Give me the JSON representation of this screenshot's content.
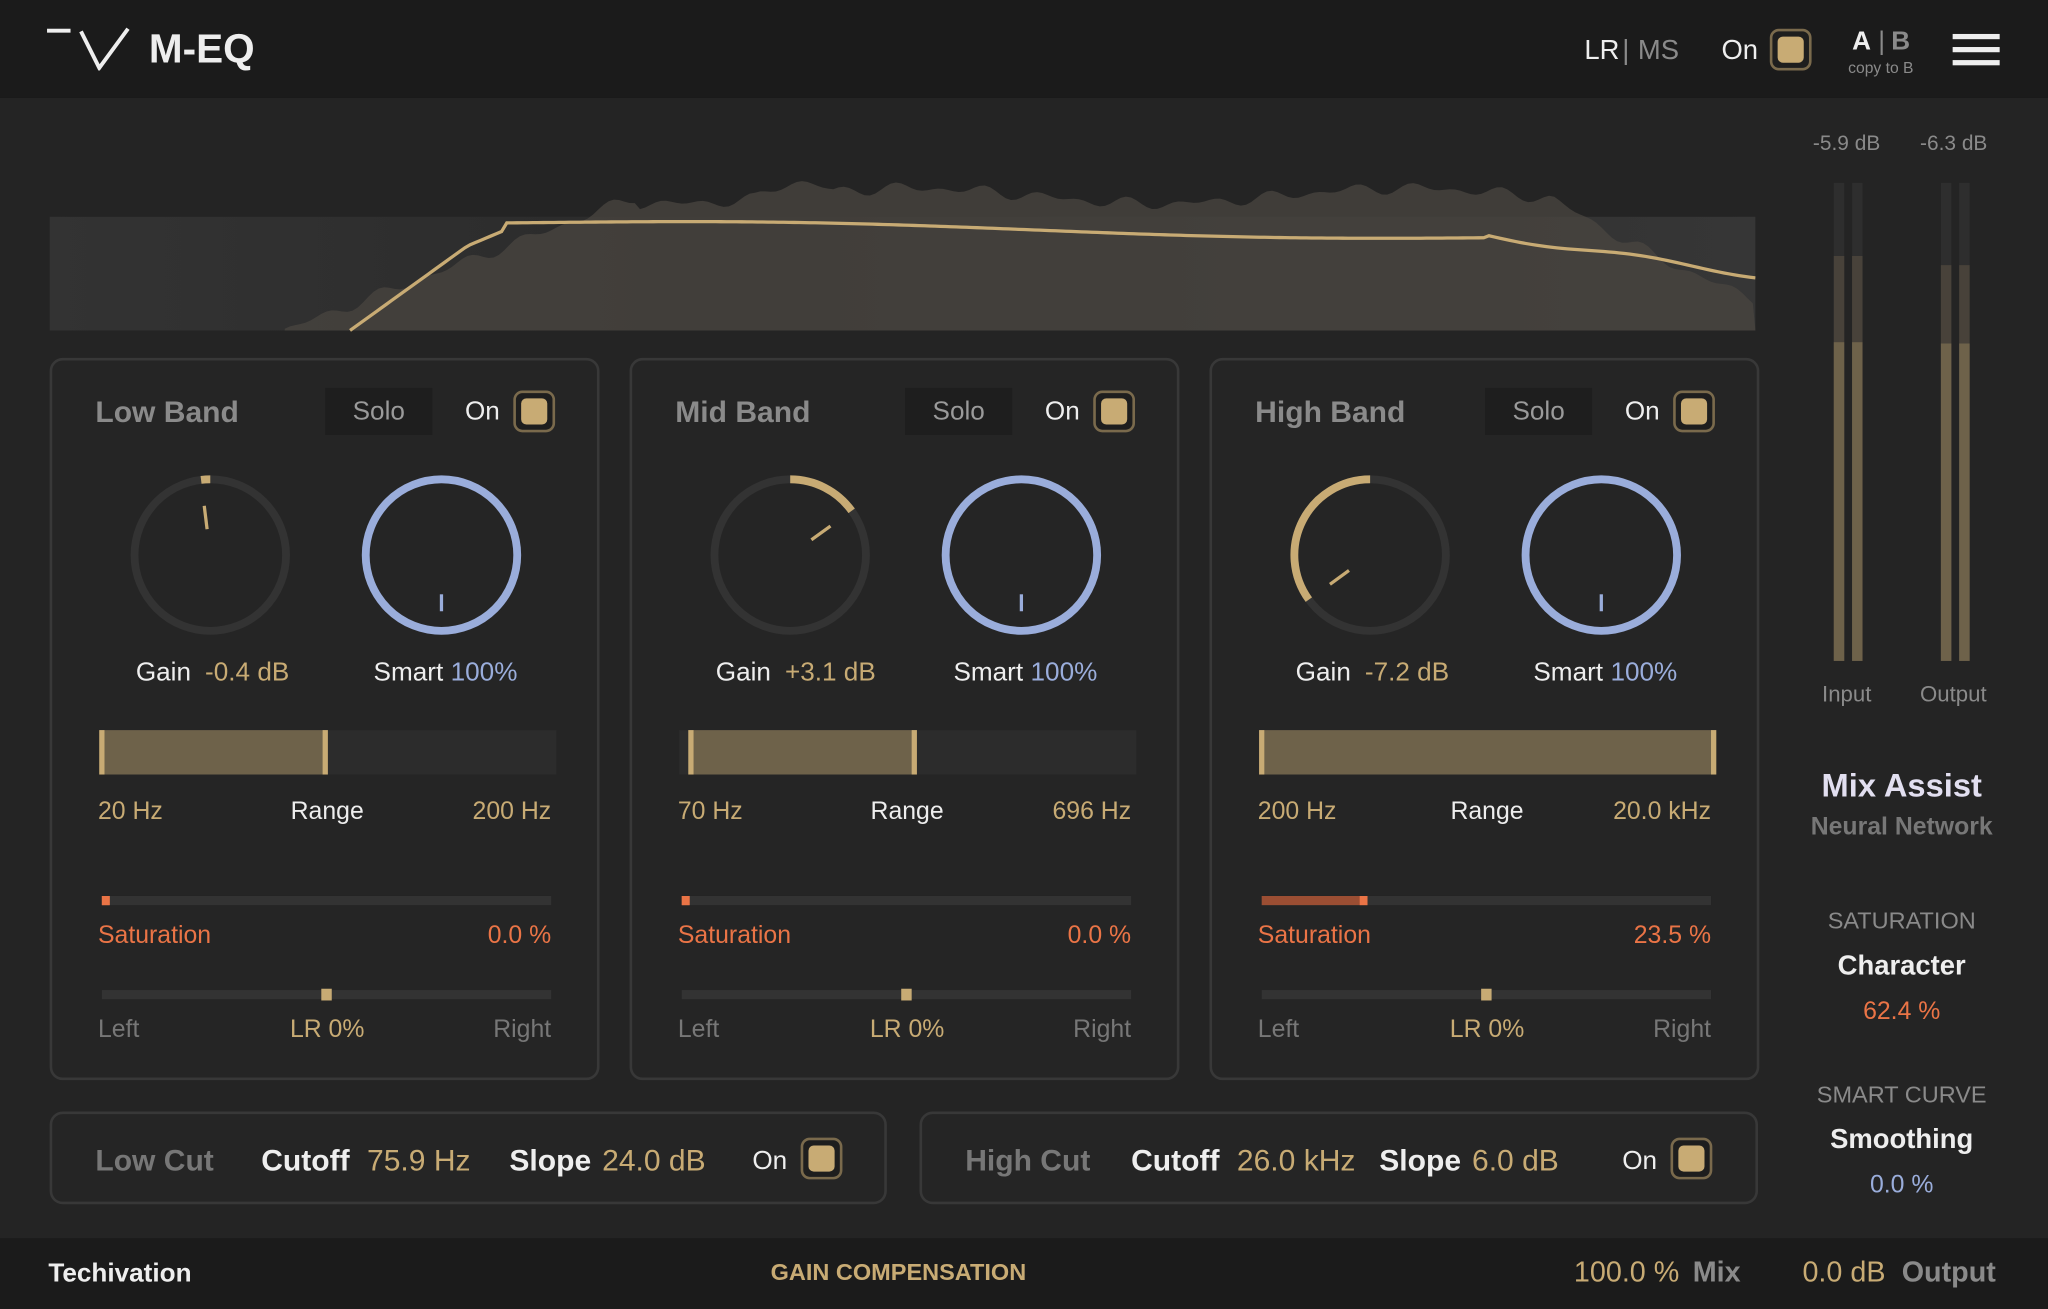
{
  "header": {
    "title": "M-EQ",
    "lr": "LR",
    "sep": "|",
    "ms": "MS",
    "on_label": "On",
    "on": true,
    "a": "A",
    "b": "B",
    "copy": "copy to B"
  },
  "colors": {
    "accent": "#c8ab74",
    "saturation": "#ea7446",
    "smart": "#9aaddb"
  },
  "bands": [
    {
      "title": "Low Band",
      "solo": "Solo",
      "on_label": "On",
      "on": true,
      "gain_label": "Gain",
      "gain_value": "-0.4 dB",
      "gain_db": -0.4,
      "smart_label": "Smart",
      "smart_value": "100%",
      "smart_pct": 100,
      "range_lo": "20 Hz",
      "range_label": "Range",
      "range_hi": "200 Hz",
      "range_fill": [
        0,
        0.5
      ],
      "sat_label": "Saturation",
      "sat_value": "0.0 %",
      "sat_pct": 0,
      "pan_left": "Left",
      "pan_value": "LR 0%",
      "pan_right": "Right",
      "pan": 0
    },
    {
      "title": "Mid Band",
      "solo": "Solo",
      "on_label": "On",
      "on": true,
      "gain_label": "Gain",
      "gain_value": "+3.1 dB",
      "gain_db": 3.1,
      "smart_label": "Smart",
      "smart_value": "100%",
      "smart_pct": 100,
      "range_lo": "70 Hz",
      "range_label": "Range",
      "range_hi": "696 Hz",
      "range_fill": [
        0.02,
        0.52
      ],
      "sat_label": "Saturation",
      "sat_value": "0.0 %",
      "sat_pct": 0,
      "pan_left": "Left",
      "pan_value": "LR 0%",
      "pan_right": "Right",
      "pan": 0
    },
    {
      "title": "High Band",
      "solo": "Solo",
      "on_label": "On",
      "on": true,
      "gain_label": "Gain",
      "gain_value": "-7.2 dB",
      "gain_db": -7.2,
      "smart_label": "Smart",
      "smart_value": "100%",
      "smart_pct": 100,
      "range_lo": "200 Hz",
      "range_label": "Range",
      "range_hi": "20.0 kHz",
      "range_fill": [
        0,
        1
      ],
      "sat_label": "Saturation",
      "sat_value": "23.5 %",
      "sat_pct": 23.5,
      "pan_left": "Left",
      "pan_value": "LR 0%",
      "pan_right": "Right",
      "pan": 0
    }
  ],
  "cuts": [
    {
      "title": "Low Cut",
      "cutoff_label": "Cutoff",
      "cutoff": "75.9 Hz",
      "slope_label": "Slope",
      "slope": "24.0 dB",
      "on_label": "On",
      "on": true
    },
    {
      "title": "High Cut",
      "cutoff_label": "Cutoff",
      "cutoff": "26.0 kHz",
      "slope_label": "Slope",
      "slope": "6.0 dB",
      "on_label": "On",
      "on": true
    }
  ],
  "meters": {
    "input_value": "-5.9 dB",
    "output_value": "-6.3 dB",
    "input_label": "Input",
    "output_label": "Output"
  },
  "assist": {
    "title": "Mix Assist",
    "subtitle": "Neural Network",
    "sat_heading": "SATURATION",
    "sat_name": "Character",
    "sat_value": "62.4 %",
    "curve_heading": "SMART CURVE",
    "curve_name": "Smoothing",
    "curve_value": "0.0 %"
  },
  "footer": {
    "brand": "Techivation",
    "gain_comp": "GAIN COMPENSATION",
    "mix_value": "100.0 %",
    "mix_label": "Mix",
    "output_value": "0.0 dB",
    "output_label": "Output"
  }
}
